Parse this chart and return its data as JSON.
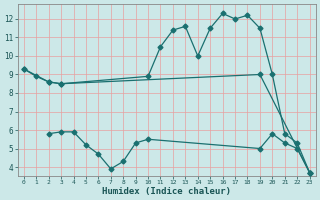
{
  "xlabel": "Humidex (Indice chaleur)",
  "bg_color": "#cce8e8",
  "grid_color": "#ff9999",
  "line_color": "#1a7070",
  "xlim": [
    -0.5,
    23.5
  ],
  "ylim": [
    3.5,
    12.8
  ],
  "xticks": [
    0,
    1,
    2,
    3,
    4,
    5,
    6,
    7,
    8,
    9,
    10,
    11,
    12,
    13,
    14,
    15,
    16,
    17,
    18,
    19,
    20,
    21,
    22,
    23
  ],
  "yticks": [
    4,
    5,
    6,
    7,
    8,
    9,
    10,
    11,
    12
  ],
  "line1_x": [
    0,
    1,
    2,
    3,
    10,
    11,
    12,
    13,
    14,
    15,
    16,
    17,
    18,
    19,
    20,
    21,
    22,
    23
  ],
  "line1_y": [
    9.3,
    8.9,
    8.6,
    8.5,
    8.9,
    10.5,
    11.4,
    11.6,
    10.0,
    11.5,
    12.3,
    12.0,
    12.2,
    11.5,
    9.0,
    5.8,
    5.3,
    3.7
  ],
  "line2_x": [
    0,
    2,
    3,
    19,
    23
  ],
  "line2_y": [
    9.3,
    8.6,
    8.5,
    9.0,
    3.7
  ],
  "line3_x": [
    2,
    3,
    4,
    5,
    6,
    7,
    8,
    9,
    10,
    19,
    20,
    21,
    22,
    23
  ],
  "line3_y": [
    5.8,
    5.9,
    5.9,
    5.2,
    4.7,
    3.9,
    4.3,
    5.3,
    5.5,
    5.0,
    5.8,
    5.3,
    5.0,
    3.7
  ],
  "markersize": 2.5,
  "linewidth": 0.9
}
